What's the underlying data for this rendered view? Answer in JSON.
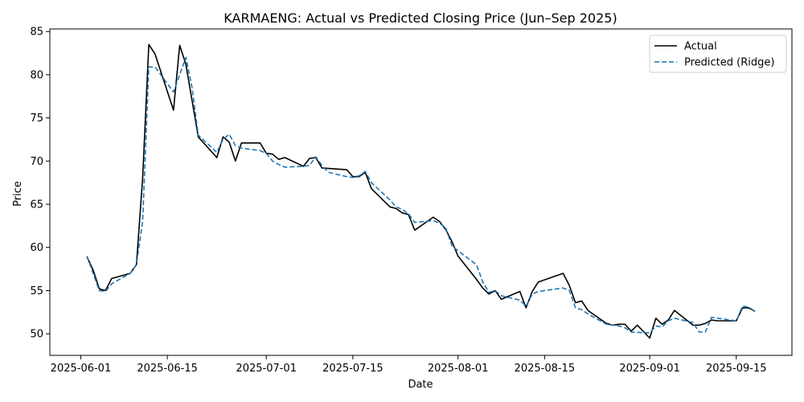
{
  "chart_data": {
    "type": "line",
    "title": "KARMAENG: Actual vs Predicted Closing Price (Jun–Sep 2025)",
    "xlabel": "Date",
    "ylabel": "Price",
    "xlim": [
      "2025-05-27",
      "2025-09-24"
    ],
    "ylim": [
      47.5,
      85.3
    ],
    "x_ticks": [
      "2025-06-01",
      "2025-06-15",
      "2025-07-01",
      "2025-07-15",
      "2025-08-01",
      "2025-08-15",
      "2025-09-01",
      "2025-09-15"
    ],
    "y_ticks": [
      50,
      55,
      60,
      65,
      70,
      75,
      80,
      85
    ],
    "legend_position": "top-right",
    "series": [
      {
        "name": "Actual",
        "color": "#000000",
        "style": "solid",
        "points": [
          [
            "2025-06-02",
            58.9
          ],
          [
            "2025-06-03",
            57.4
          ],
          [
            "2025-06-04",
            55.2
          ],
          [
            "2025-06-05",
            55.0
          ],
          [
            "2025-06-06",
            56.4
          ],
          [
            "2025-06-09",
            57.0
          ],
          [
            "2025-06-10",
            58.0
          ],
          [
            "2025-06-11",
            68.0
          ],
          [
            "2025-06-12",
            83.5
          ],
          [
            "2025-06-13",
            82.4
          ],
          [
            "2025-06-16",
            75.9
          ],
          [
            "2025-06-17",
            83.4
          ],
          [
            "2025-06-18",
            81.2
          ],
          [
            "2025-06-19",
            77.0
          ],
          [
            "2025-06-20",
            72.8
          ],
          [
            "2025-06-23",
            70.4
          ],
          [
            "2025-06-24",
            72.8
          ],
          [
            "2025-06-25",
            72.2
          ],
          [
            "2025-06-26",
            70.0
          ],
          [
            "2025-06-27",
            72.1
          ],
          [
            "2025-06-30",
            72.1
          ],
          [
            "2025-07-01",
            70.9
          ],
          [
            "2025-07-02",
            70.8
          ],
          [
            "2025-07-03",
            70.2
          ],
          [
            "2025-07-04",
            70.4
          ],
          [
            "2025-07-07",
            69.4
          ],
          [
            "2025-07-08",
            70.3
          ],
          [
            "2025-07-09",
            70.4
          ],
          [
            "2025-07-10",
            69.2
          ],
          [
            "2025-07-14",
            69.0
          ],
          [
            "2025-07-15",
            68.2
          ],
          [
            "2025-07-16",
            68.2
          ],
          [
            "2025-07-17",
            68.7
          ],
          [
            "2025-07-18",
            66.8
          ],
          [
            "2025-07-21",
            64.7
          ],
          [
            "2025-07-22",
            64.5
          ],
          [
            "2025-07-23",
            64.0
          ],
          [
            "2025-07-24",
            63.8
          ],
          [
            "2025-07-25",
            62.0
          ],
          [
            "2025-07-28",
            63.5
          ],
          [
            "2025-07-29",
            63.0
          ],
          [
            "2025-07-30",
            62.1
          ],
          [
            "2025-07-31",
            60.7
          ],
          [
            "2025-08-01",
            59.0
          ],
          [
            "2025-08-04",
            56.3
          ],
          [
            "2025-08-05",
            55.3
          ],
          [
            "2025-08-06",
            54.6
          ],
          [
            "2025-08-07",
            55.0
          ],
          [
            "2025-08-08",
            54.0
          ],
          [
            "2025-08-11",
            54.9
          ],
          [
            "2025-08-12",
            53.0
          ],
          [
            "2025-08-13",
            54.9
          ],
          [
            "2025-08-14",
            56.0
          ],
          [
            "2025-08-18",
            57.0
          ],
          [
            "2025-08-19",
            55.6
          ],
          [
            "2025-08-20",
            53.6
          ],
          [
            "2025-08-21",
            53.8
          ],
          [
            "2025-08-22",
            52.7
          ],
          [
            "2025-08-25",
            51.2
          ],
          [
            "2025-08-26",
            51.0
          ],
          [
            "2025-08-27",
            51.1
          ],
          [
            "2025-08-28",
            51.1
          ],
          [
            "2025-08-29",
            50.3
          ],
          [
            "2025-08-30",
            51.0
          ],
          [
            "2025-09-01",
            49.5
          ],
          [
            "2025-09-02",
            51.8
          ],
          [
            "2025-09-03",
            51.1
          ],
          [
            "2025-09-04",
            51.6
          ],
          [
            "2025-09-05",
            52.7
          ],
          [
            "2025-09-08",
            51.0
          ],
          [
            "2025-09-09",
            51.0
          ],
          [
            "2025-09-10",
            51.2
          ],
          [
            "2025-09-11",
            51.6
          ],
          [
            "2025-09-12",
            51.5
          ],
          [
            "2025-09-15",
            51.5
          ],
          [
            "2025-09-16",
            53.0
          ],
          [
            "2025-09-17",
            53.0
          ],
          [
            "2025-09-18",
            52.6
          ]
        ]
      },
      {
        "name": "Predicted (Ridge)",
        "color": "#1f77b4",
        "style": "dashed",
        "points": [
          [
            "2025-06-02",
            59.0
          ],
          [
            "2025-06-03",
            57.0
          ],
          [
            "2025-06-04",
            55.0
          ],
          [
            "2025-06-05",
            54.9
          ],
          [
            "2025-06-06",
            55.8
          ],
          [
            "2025-06-09",
            57.0
          ],
          [
            "2025-06-10",
            58.0
          ],
          [
            "2025-06-11",
            63.0
          ],
          [
            "2025-06-12",
            80.9
          ],
          [
            "2025-06-13",
            80.9
          ],
          [
            "2025-06-16",
            78.0
          ],
          [
            "2025-06-17",
            80.0
          ],
          [
            "2025-06-18",
            82.0
          ],
          [
            "2025-06-19",
            78.5
          ],
          [
            "2025-06-20",
            73.0
          ],
          [
            "2025-06-23",
            71.0
          ],
          [
            "2025-06-24",
            72.5
          ],
          [
            "2025-06-25",
            73.1
          ],
          [
            "2025-06-26",
            71.8
          ],
          [
            "2025-06-27",
            71.5
          ],
          [
            "2025-06-30",
            71.2
          ],
          [
            "2025-07-01",
            70.9
          ],
          [
            "2025-07-02",
            70.0
          ],
          [
            "2025-07-03",
            69.6
          ],
          [
            "2025-07-04",
            69.3
          ],
          [
            "2025-07-07",
            69.4
          ],
          [
            "2025-07-08",
            69.5
          ],
          [
            "2025-07-09",
            70.5
          ],
          [
            "2025-07-10",
            69.5
          ],
          [
            "2025-07-11",
            68.7
          ],
          [
            "2025-07-14",
            68.2
          ],
          [
            "2025-07-15",
            68.1
          ],
          [
            "2025-07-16",
            68.3
          ],
          [
            "2025-07-17",
            68.8
          ],
          [
            "2025-07-18",
            67.5
          ],
          [
            "2025-07-21",
            65.5
          ],
          [
            "2025-07-22",
            64.7
          ],
          [
            "2025-07-23",
            64.4
          ],
          [
            "2025-07-24",
            63.9
          ],
          [
            "2025-07-25",
            62.9
          ],
          [
            "2025-07-28",
            63.1
          ],
          [
            "2025-07-29",
            62.8
          ],
          [
            "2025-07-30",
            62.3
          ],
          [
            "2025-07-31",
            60.2
          ],
          [
            "2025-08-01",
            59.6
          ],
          [
            "2025-08-04",
            58.0
          ],
          [
            "2025-08-05",
            56.0
          ],
          [
            "2025-08-06",
            54.8
          ],
          [
            "2025-08-07",
            55.0
          ],
          [
            "2025-08-08",
            54.4
          ],
          [
            "2025-08-11",
            53.9
          ],
          [
            "2025-08-12",
            53.2
          ],
          [
            "2025-08-13",
            54.6
          ],
          [
            "2025-08-14",
            54.9
          ],
          [
            "2025-08-18",
            55.3
          ],
          [
            "2025-08-19",
            55.0
          ],
          [
            "2025-08-20",
            53.0
          ],
          [
            "2025-08-21",
            52.8
          ],
          [
            "2025-08-22",
            52.3
          ],
          [
            "2025-08-25",
            51.1
          ],
          [
            "2025-08-26",
            51.0
          ],
          [
            "2025-08-27",
            50.9
          ],
          [
            "2025-08-28",
            50.7
          ],
          [
            "2025-08-29",
            50.2
          ],
          [
            "2025-09-01",
            50.1
          ],
          [
            "2025-09-02",
            50.9
          ],
          [
            "2025-09-03",
            50.8
          ],
          [
            "2025-09-04",
            51.5
          ],
          [
            "2025-09-05",
            51.8
          ],
          [
            "2025-09-08",
            51.3
          ],
          [
            "2025-09-09",
            50.2
          ],
          [
            "2025-09-10",
            50.2
          ],
          [
            "2025-09-11",
            51.9
          ],
          [
            "2025-09-12",
            51.8
          ],
          [
            "2025-09-15",
            51.5
          ],
          [
            "2025-09-16",
            53.2
          ],
          [
            "2025-09-17",
            53.1
          ],
          [
            "2025-09-18",
            52.6
          ]
        ]
      }
    ]
  }
}
